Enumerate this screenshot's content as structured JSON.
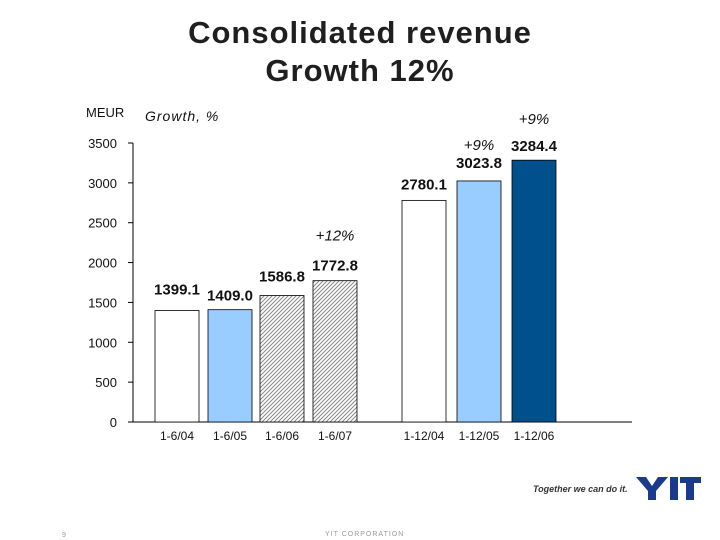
{
  "title": {
    "line1": "Consolidated revenue",
    "line2": "Growth 12%"
  },
  "unit_label": "MEUR",
  "growth_label": "Growth, %",
  "chart_data": {
    "type": "bar",
    "title": "Consolidated revenue Growth 12%",
    "ylabel": "MEUR",
    "xlabel": "",
    "ylim": [
      0,
      3500
    ],
    "yticks": [
      0,
      500,
      1000,
      1500,
      2000,
      2500,
      3000,
      3500
    ],
    "grid": false,
    "categories": [
      "1-6/04",
      "1-6/05",
      "1-6/06",
      "1-6/07",
      "1-12/04",
      "1-12/05",
      "1-12/06"
    ],
    "values": [
      1399.1,
      1409.0,
      1586.8,
      1772.8,
      2780.1,
      3023.8,
      3284.4
    ],
    "value_labels": [
      "1399.1",
      "1409.0",
      "1586.8",
      "1772.8",
      "2780.1",
      "3023.8",
      "3284.4"
    ],
    "bar_styles": [
      "white",
      "lightblue",
      "hatched",
      "hatched",
      "white",
      "lightblue",
      "darkblue"
    ],
    "growth_annotations": [
      {
        "category": "1-6/07",
        "text": "+12%"
      },
      {
        "category": "1-12/05",
        "text": "+9%"
      },
      {
        "category": "1-12/06",
        "text": "+9%"
      }
    ]
  },
  "colors": {
    "white_bar": "#ffffff",
    "light_blue_bar": "#99ccff",
    "dark_blue_bar": "#00508c",
    "logo_blue": "#1a3a8c"
  },
  "footer": {
    "tagline": "Together we can do it.",
    "logo": "YIT",
    "company": "YIT CORPORATION",
    "page_number": "9"
  }
}
